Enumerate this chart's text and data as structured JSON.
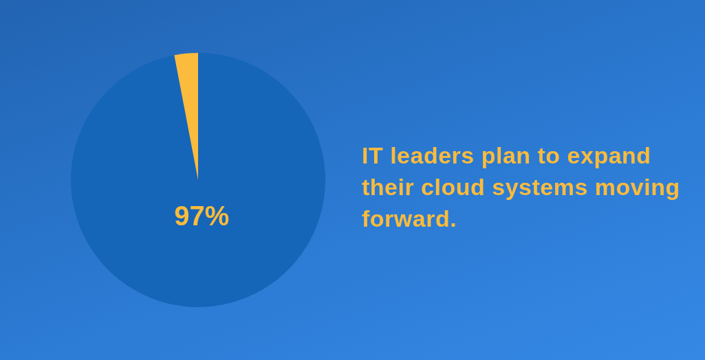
{
  "chart_data": {
    "type": "pie",
    "title": "IT leaders plan to expand their cloud systems moving forward.",
    "categories": [
      null,
      null
    ],
    "values": [
      97,
      3
    ],
    "colors": [
      "#1565b8",
      "#fbbb3c"
    ],
    "value_labels": [
      "97%",
      null
    ],
    "legend": false
  }
}
